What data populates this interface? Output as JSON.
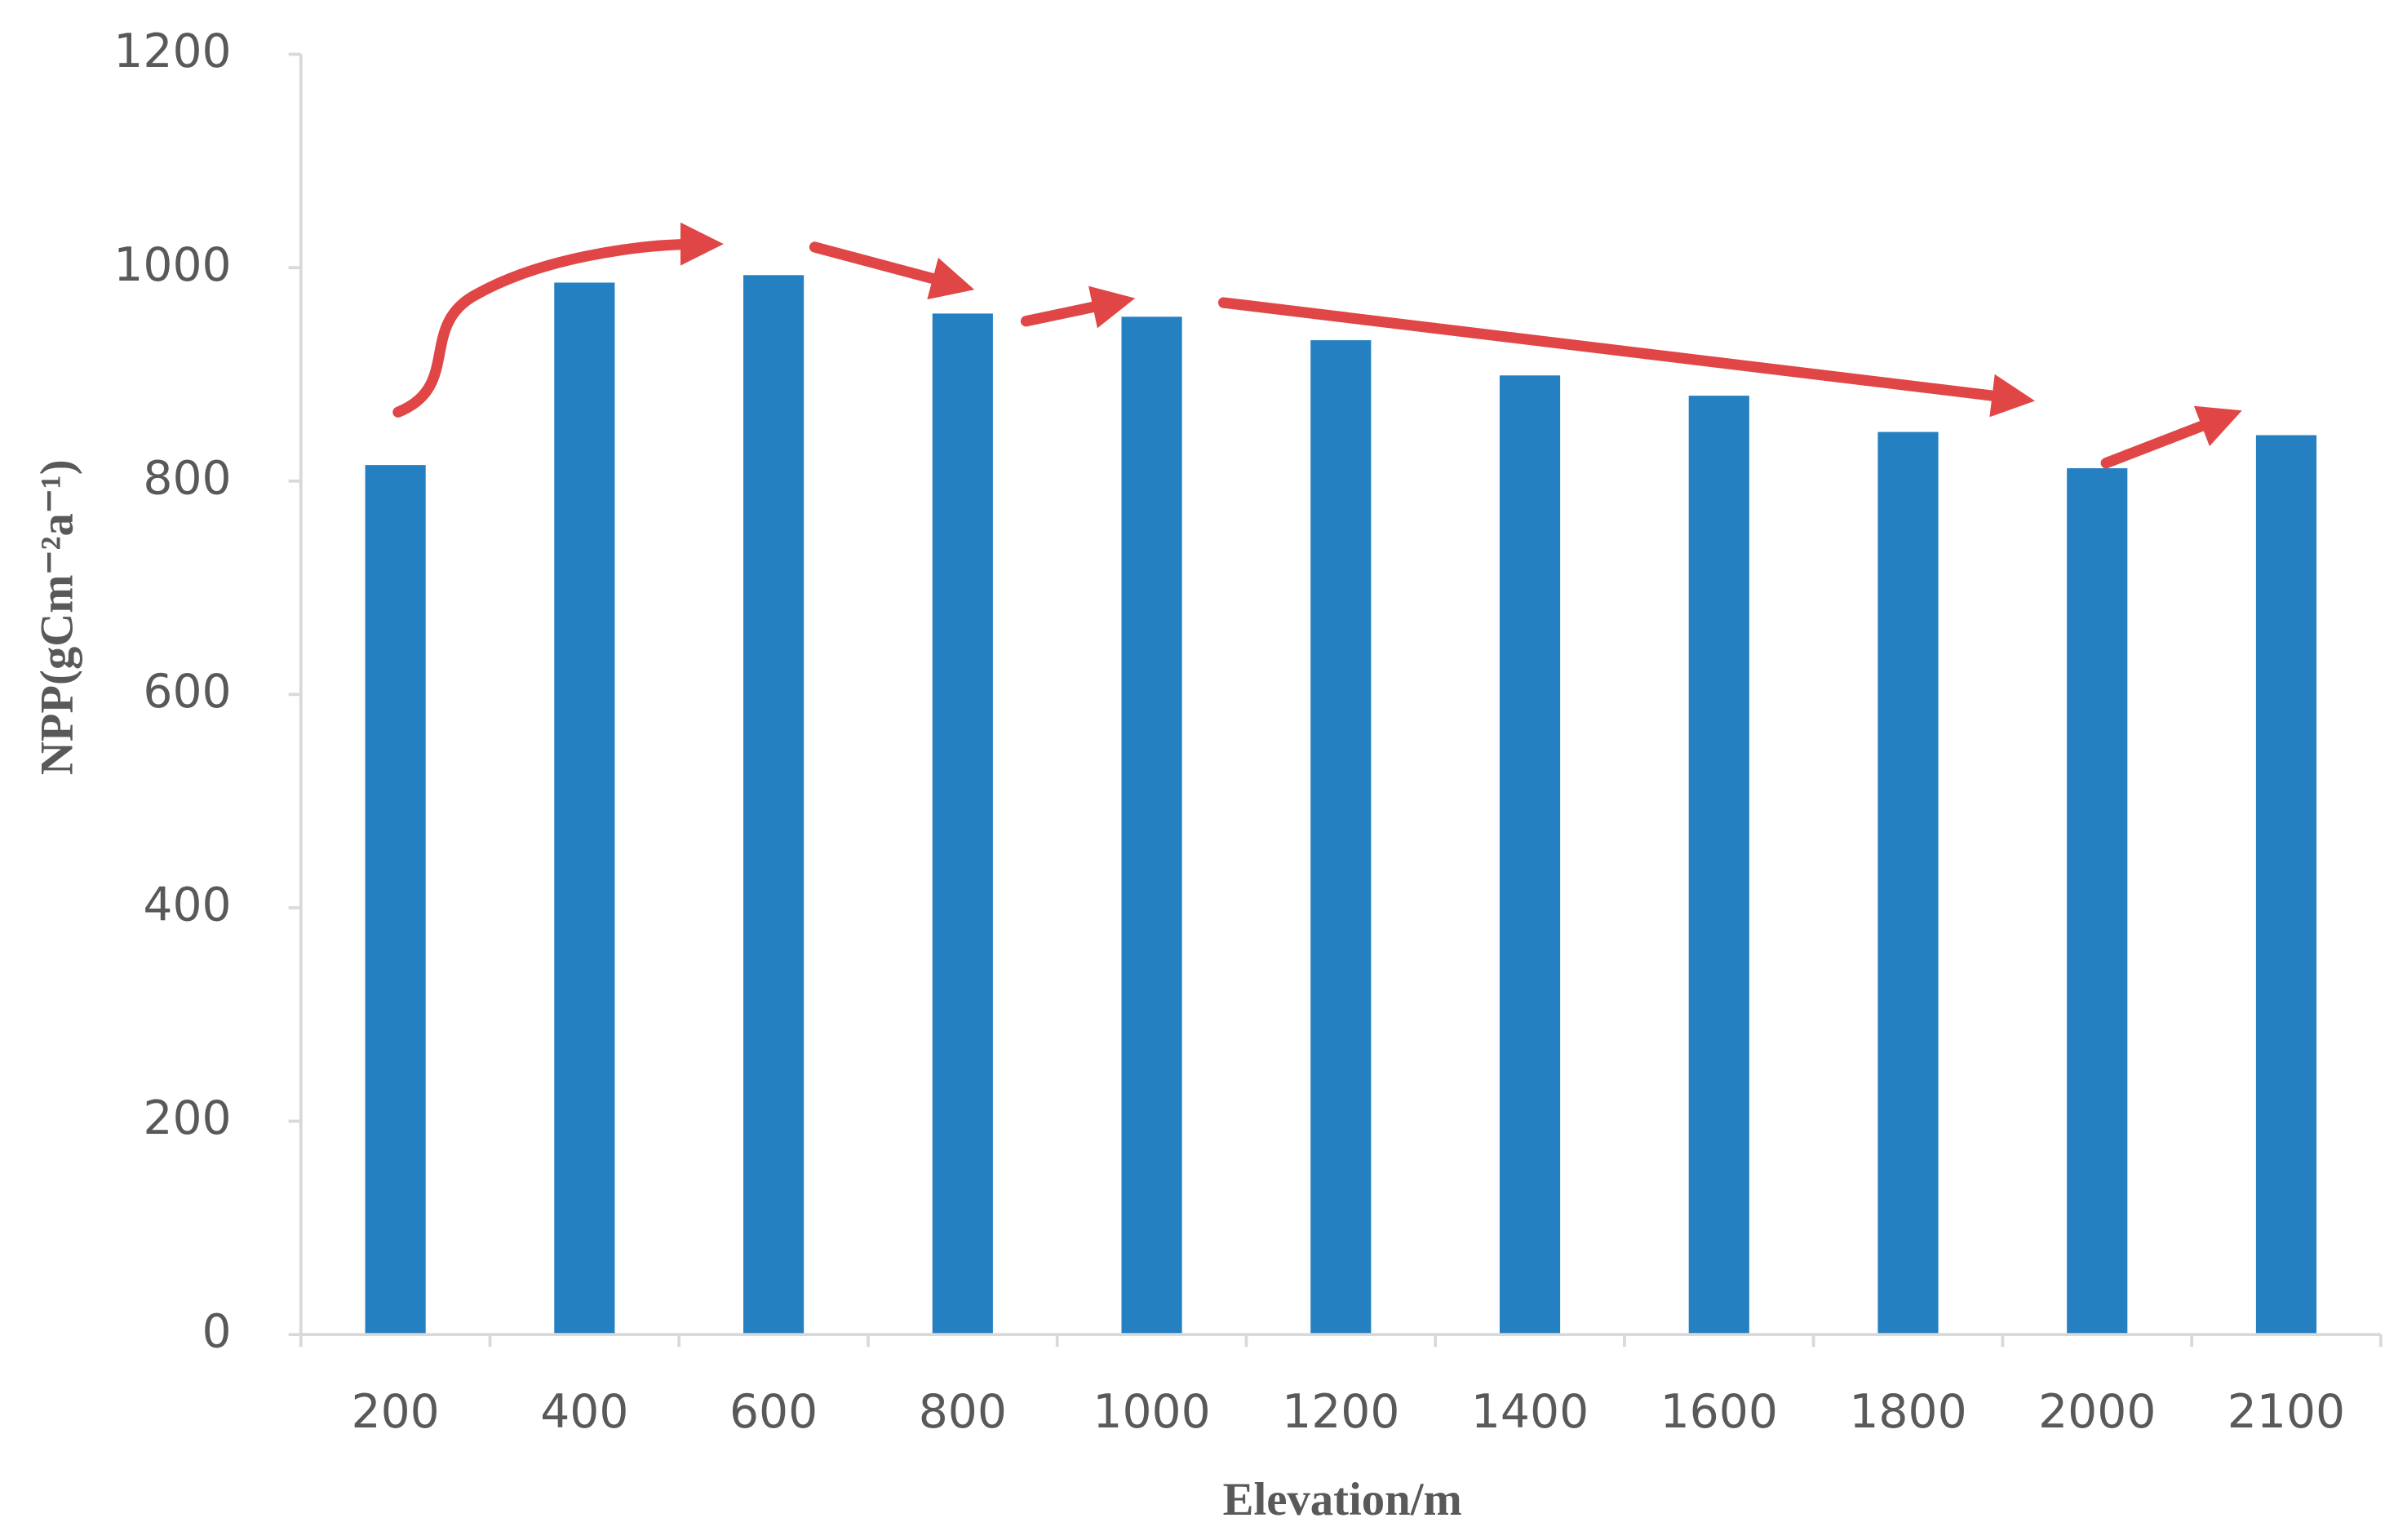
{
  "chart_data": {
    "type": "bar",
    "x_label": "Elevation/m",
    "y_label": "NPP(gCm⁻²a⁻¹)",
    "categories": [
      "200",
      "400",
      "600",
      "800",
      "1000",
      "1200",
      "1400",
      "1600",
      "1800",
      "2000",
      "2100"
    ],
    "values": [
      815,
      986,
      993,
      957,
      954,
      932,
      899,
      880,
      846,
      812,
      843
    ],
    "color": "#2580c1",
    "ylim": [
      0,
      1200
    ],
    "yticks": [
      0,
      200,
      400,
      600,
      800,
      1000,
      1200
    ]
  }
}
